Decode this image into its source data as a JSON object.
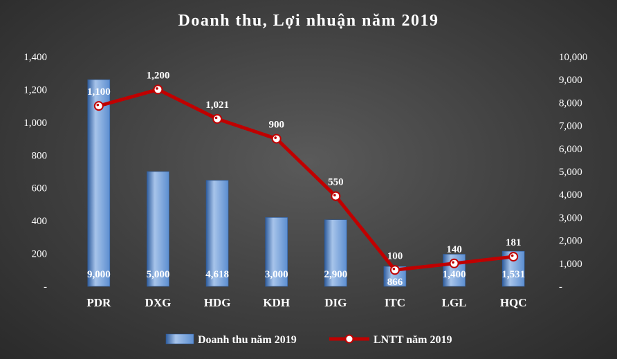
{
  "chart_data": {
    "type": "bar",
    "title": "Doanh thu, Lợi nhuận năm 2019",
    "categories": [
      "PDR",
      "DXG",
      "HDG",
      "KDH",
      "DIG",
      "ITC",
      "LGL",
      "HQC"
    ],
    "series": [
      {
        "name": "Doanh thu năm 2019",
        "type": "bar",
        "axis": "right",
        "values": [
          9000,
          5000,
          4618,
          3000,
          2900,
          866,
          1400,
          1531
        ],
        "labels": [
          "9,000",
          "5,000",
          "4,618",
          "3,000",
          "2,900",
          "866",
          "1,400",
          "1,531"
        ]
      },
      {
        "name": "LNTT năm 2019",
        "type": "line",
        "axis": "left",
        "values": [
          1100,
          1200,
          1021,
          900,
          550,
          100,
          140,
          181
        ],
        "labels": [
          "1,100",
          "1,200",
          "1,021",
          "900",
          "550",
          "100",
          "140",
          "181"
        ]
      }
    ],
    "y_left": {
      "range": [
        0,
        1400
      ],
      "ticks": [
        0,
        200,
        400,
        600,
        800,
        1000,
        1200,
        1400
      ],
      "tick_labels": [
        "-",
        "200",
        "400",
        "600",
        "800",
        "1,000",
        "1,200",
        "1,400"
      ]
    },
    "y_right": {
      "range": [
        0,
        10000
      ],
      "ticks": [
        0,
        1000,
        2000,
        3000,
        4000,
        5000,
        6000,
        7000,
        8000,
        9000,
        10000
      ],
      "tick_labels": [
        "-",
        "1,000",
        "2,000",
        "3,000",
        "4,000",
        "5,000",
        "6,000",
        "7,000",
        "8,000",
        "9,000",
        "10,000"
      ]
    },
    "grid": false,
    "legend": "bottom",
    "colors": {
      "bar_light": "#a7c4ea",
      "bar_mid": "#5c8ed0",
      "bar_dark": "#2f5d9e",
      "line": "#c00000",
      "marker_fill": "#ffffff"
    }
  }
}
